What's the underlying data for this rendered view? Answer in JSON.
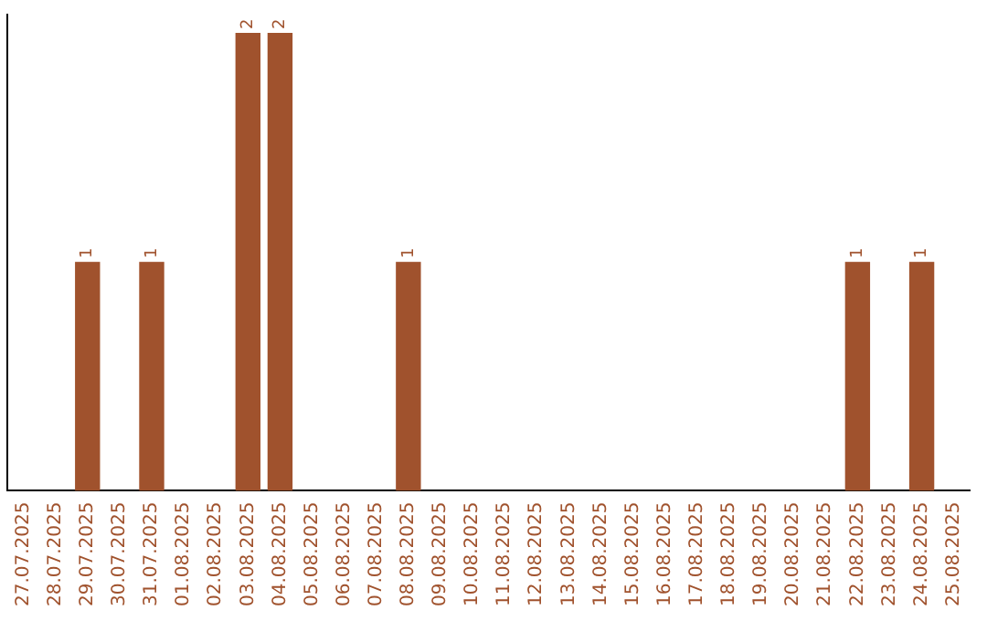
{
  "chart_data": {
    "type": "bar",
    "categories": [
      "27.07.2025",
      "28.07.2025",
      "29.07.2025",
      "30.07.2025",
      "31.07.2025",
      "01.08.2025",
      "02.08.2025",
      "03.08.2025",
      "04.08.2025",
      "05.08.2025",
      "06.08.2025",
      "07.08.2025",
      "08.08.2025",
      "09.08.2025",
      "10.08.2025",
      "11.08.2025",
      "12.08.2025",
      "13.08.2025",
      "14.08.2025",
      "15.08.2025",
      "16.08.2025",
      "17.08.2025",
      "18.08.2025",
      "19.08.2025",
      "20.08.2025",
      "21.08.2025",
      "22.08.2025",
      "23.08.2025",
      "24.08.2025",
      "25.08.2025"
    ],
    "values": [
      0,
      0,
      1,
      0,
      1,
      0,
      0,
      2,
      2,
      0,
      0,
      0,
      1,
      0,
      0,
      0,
      0,
      0,
      0,
      0,
      0,
      0,
      0,
      0,
      0,
      0,
      1,
      0,
      1,
      0
    ],
    "value_labels": [
      null,
      null,
      "1",
      null,
      "1",
      null,
      null,
      "2",
      "2",
      null,
      null,
      null,
      "1",
      null,
      null,
      null,
      null,
      null,
      null,
      null,
      null,
      null,
      null,
      null,
      null,
      null,
      "1",
      null,
      "1",
      null
    ],
    "color": "#a0522d",
    "ylim": [
      0,
      2.08
    ],
    "tick_labels": "x",
    "grid": false,
    "legend": false
  }
}
